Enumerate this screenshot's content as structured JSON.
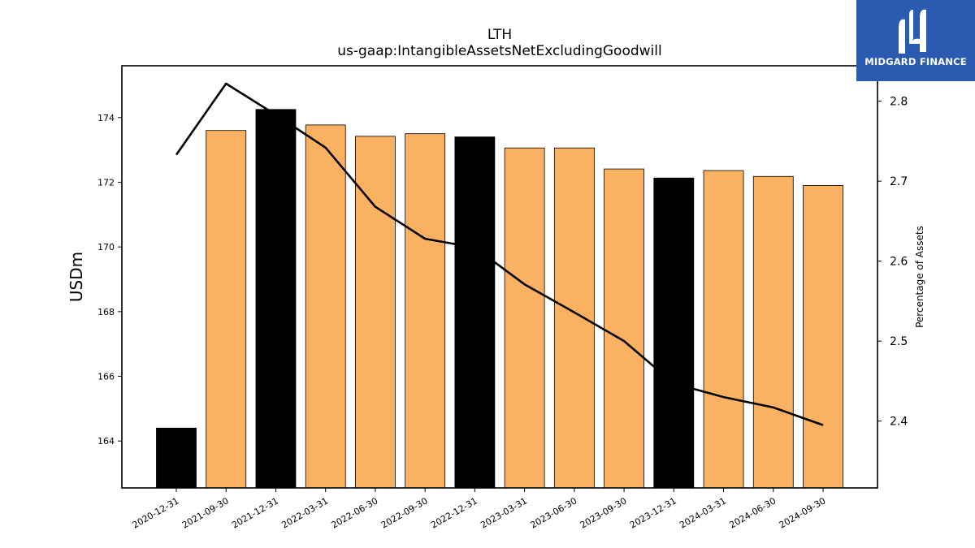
{
  "chart_data": {
    "type": "bar",
    "title": "LTH",
    "subtitle": "us-gaap:IntangibleAssetsNetExcludingGoodwill",
    "ylabel": "USDm",
    "y2label": "Percentage of Assets",
    "categories": [
      "2020-12-31",
      "2021-09-30",
      "2021-12-31",
      "2022-03-31",
      "2022-06-30",
      "2022-09-30",
      "2022-12-31",
      "2023-03-31",
      "2023-06-30",
      "2023-09-30",
      "2023-12-31",
      "2024-03-31",
      "2024-06-30",
      "2024-09-30"
    ],
    "series": [
      {
        "values": [
          164.4,
          173.6,
          174.25,
          173.77,
          173.42,
          173.5,
          173.4,
          173.06,
          173.06,
          172.41,
          172.13,
          172.36,
          172.18,
          171.9
        ],
        "axis": "left"
      },
      {
        "values": [
          2.733,
          2.822,
          2.783,
          2.742,
          2.668,
          2.628,
          2.617,
          2.571,
          2.536,
          2.5,
          2.447,
          2.43,
          2.417,
          2.395
        ],
        "axis": "right"
      }
    ],
    "bar_colors": [
      "#000000",
      "#fbb162",
      "#000000",
      "#fbb162",
      "#fbb162",
      "#fbb162",
      "#000000",
      "#fbb162",
      "#fbb162",
      "#fbb162",
      "#000000",
      "#fbb162",
      "#fbb162",
      "#fbb162"
    ],
    "ylim": [
      162.55,
      175.6
    ],
    "y2lim": [
      2.3164,
      2.8443
    ],
    "yticks": [
      164,
      166,
      168,
      170,
      172,
      174
    ],
    "y2ticks": [
      2.4,
      2.5,
      2.6,
      2.7,
      2.8
    ],
    "grid": false,
    "legend": "none"
  },
  "logo": {
    "text": "MIDGARD FINANCE",
    "background": "#2a5bb0"
  }
}
